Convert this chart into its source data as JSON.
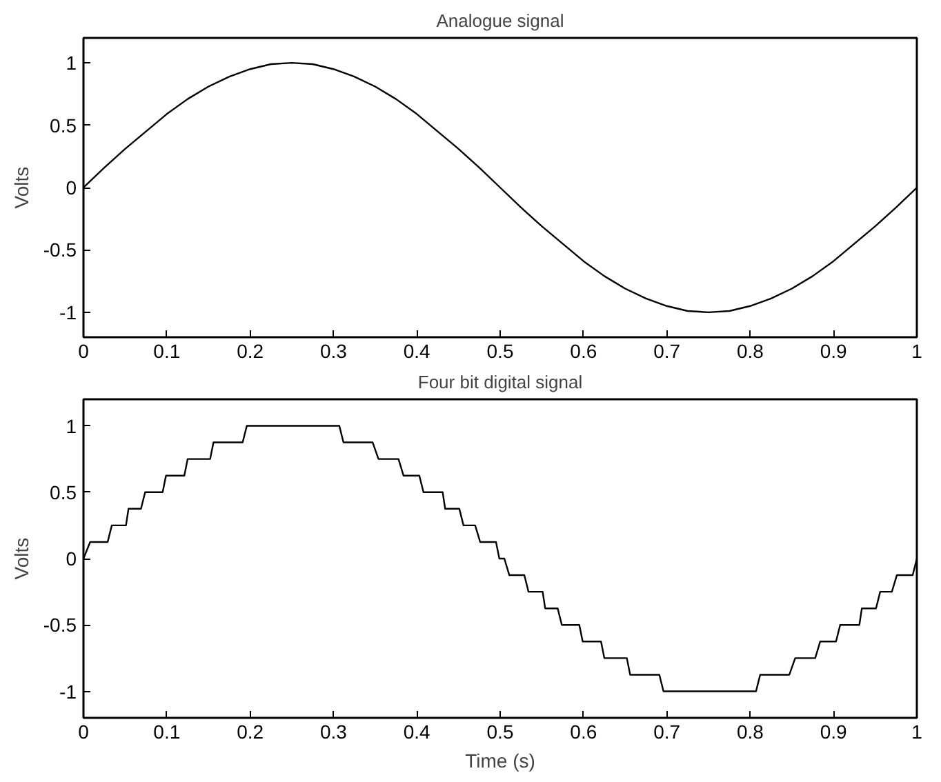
{
  "chart_data": [
    {
      "type": "line",
      "title": "Analogue signal",
      "ylabel": "Volts",
      "xlim": [
        0,
        1
      ],
      "ylim": [
        -1.2,
        1.2
      ],
      "xticks": [
        0,
        0.1,
        0.2,
        0.3,
        0.4,
        0.5,
        0.6,
        0.7,
        0.8,
        0.9,
        1
      ],
      "yticks": [
        -1,
        -0.5,
        0,
        0.5,
        1
      ],
      "grid": false,
      "series": [
        {
          "color": "#000000",
          "x": [
            0,
            0.025,
            0.05,
            0.075,
            0.1,
            0.125,
            0.15,
            0.175,
            0.2,
            0.225,
            0.25,
            0.275,
            0.3,
            0.325,
            0.35,
            0.375,
            0.4,
            0.425,
            0.45,
            0.475,
            0.5,
            0.525,
            0.55,
            0.575,
            0.6,
            0.625,
            0.65,
            0.675,
            0.7,
            0.725,
            0.75,
            0.775,
            0.8,
            0.825,
            0.85,
            0.875,
            0.9,
            0.925,
            0.95,
            0.975,
            1
          ],
          "values": [
            0,
            0.16,
            0.31,
            0.45,
            0.59,
            0.71,
            0.81,
            0.89,
            0.95,
            0.99,
            1,
            0.99,
            0.95,
            0.89,
            0.81,
            0.71,
            0.59,
            0.45,
            0.31,
            0.16,
            0,
            -0.16,
            -0.31,
            -0.45,
            -0.59,
            -0.71,
            -0.81,
            -0.89,
            -0.95,
            -0.99,
            -1,
            -0.99,
            -0.95,
            -0.89,
            -0.81,
            -0.71,
            -0.59,
            -0.45,
            -0.31,
            -0.16,
            0
          ]
        }
      ]
    },
    {
      "type": "line",
      "title": "Four bit digital signal",
      "xlabel": "Time (s)",
      "ylabel": "Volts",
      "xlim": [
        0,
        1
      ],
      "ylim": [
        -1.2,
        1.2
      ],
      "xticks": [
        0,
        0.1,
        0.2,
        0.3,
        0.4,
        0.5,
        0.6,
        0.7,
        0.8,
        0.9,
        1
      ],
      "yticks": [
        -1,
        -0.5,
        0,
        0.5,
        1
      ],
      "grid": false,
      "series": [
        {
          "color": "#000000",
          "x": [
            0,
            0.008,
            0.029,
            0.034,
            0.051,
            0.054,
            0.069,
            0.074,
            0.095,
            0.099,
            0.121,
            0.125,
            0.152,
            0.156,
            0.191,
            0.196,
            0.307,
            0.312,
            0.347,
            0.354,
            0.378,
            0.384,
            0.403,
            0.408,
            0.431,
            0.434,
            0.451,
            0.456,
            0.47,
            0.476,
            0.495,
            0.499,
            0.505,
            0.511,
            0.529,
            0.534,
            0.551,
            0.554,
            0.569,
            0.574,
            0.595,
            0.599,
            0.621,
            0.625,
            0.652,
            0.656,
            0.691,
            0.696,
            0.807,
            0.812,
            0.847,
            0.854,
            0.878,
            0.884,
            0.903,
            0.908,
            0.931,
            0.934,
            0.951,
            0.956,
            0.97,
            0.976,
            0.995,
            1
          ],
          "values": [
            0,
            0.125,
            0.125,
            0.25,
            0.25,
            0.375,
            0.375,
            0.5,
            0.5,
            0.625,
            0.625,
            0.75,
            0.75,
            0.875,
            0.875,
            1,
            1,
            0.875,
            0.875,
            0.75,
            0.75,
            0.625,
            0.625,
            0.5,
            0.5,
            0.375,
            0.375,
            0.25,
            0.25,
            0.125,
            0.125,
            0,
            0,
            -0.125,
            -0.125,
            -0.25,
            -0.25,
            -0.375,
            -0.375,
            -0.5,
            -0.5,
            -0.625,
            -0.625,
            -0.75,
            -0.75,
            -0.875,
            -0.875,
            -1,
            -1,
            -0.875,
            -0.875,
            -0.75,
            -0.75,
            -0.625,
            -0.625,
            -0.5,
            -0.5,
            -0.375,
            -0.375,
            -0.25,
            -0.25,
            -0.125,
            -0.125,
            0
          ]
        }
      ]
    }
  ]
}
